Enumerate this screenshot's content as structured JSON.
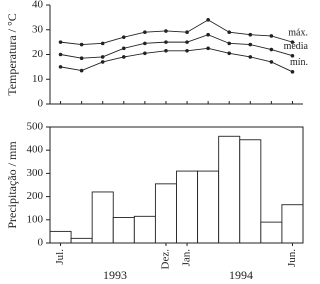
{
  "chart_data": [
    {
      "type": "line",
      "y_label": "Temperatura / °C",
      "ylim": [
        0,
        40
      ],
      "yticks": [
        0,
        10,
        20,
        30,
        40
      ],
      "grid": false,
      "series": [
        {
          "name": "máx.",
          "color": "#222222",
          "values": [
            25,
            24,
            24.5,
            27,
            29,
            29.5,
            29,
            34,
            29,
            28,
            27.5,
            25
          ]
        },
        {
          "name": "média",
          "color": "#222222",
          "values": [
            20,
            18.5,
            19,
            22.5,
            24.5,
            25,
            25,
            28,
            24.5,
            24,
            22,
            19.5
          ]
        },
        {
          "name": "mín.",
          "color": "#222222",
          "values": [
            15,
            13.5,
            17,
            19,
            20.5,
            21.5,
            21.5,
            22.5,
            20.5,
            19,
            17,
            13
          ]
        }
      ]
    },
    {
      "type": "bar",
      "y_label": "Precipitação / mm",
      "ylim": [
        0,
        500
      ],
      "yticks": [
        0,
        100,
        200,
        300,
        400,
        500
      ],
      "grid": false,
      "color": "#ffffff",
      "categories": [
        "Jul.",
        null,
        null,
        null,
        null,
        "Dez.",
        "Jan.",
        null,
        null,
        null,
        null,
        "Jun."
      ],
      "values": [
        50,
        20,
        220,
        110,
        115,
        255,
        310,
        310,
        460,
        445,
        90,
        165
      ],
      "year_labels": [
        "1993",
        "1994"
      ]
    }
  ]
}
